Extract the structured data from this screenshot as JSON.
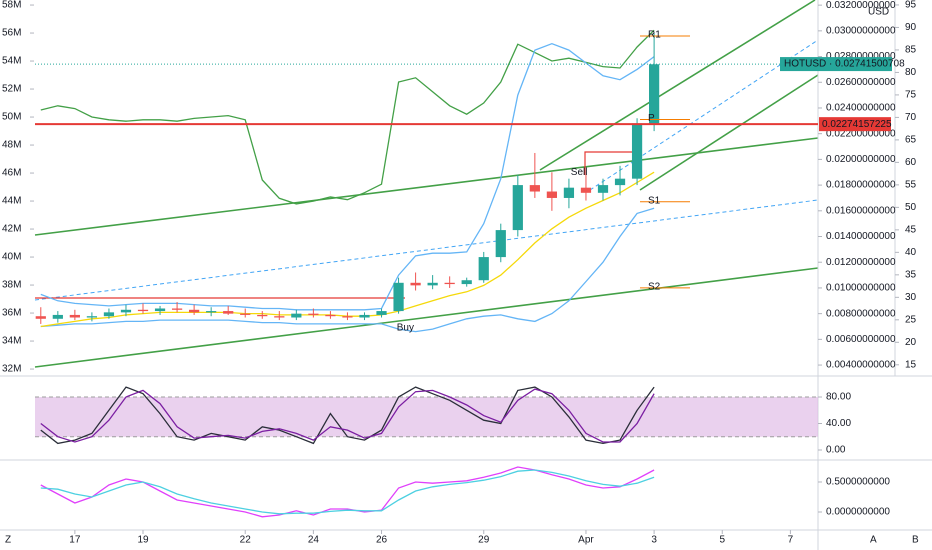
{
  "chart_data": [
    {
      "type": "candlestick",
      "x": [
        0,
        0.5,
        1,
        1.5,
        2,
        2.5,
        3,
        3.5,
        4,
        4.5,
        5,
        5.5,
        6,
        6.5,
        7,
        7.5,
        8,
        8.5,
        9,
        9.5,
        10,
        10.5,
        11,
        11.5,
        12,
        12.5,
        13,
        13.5,
        14,
        14.5,
        15,
        15.5,
        16,
        16.5,
        17,
        17.5,
        18
      ],
      "open": [
        0.0078,
        0.0076,
        0.0079,
        0.0077,
        0.0078,
        0.0081,
        0.0083,
        0.0082,
        0.0084,
        0.0083,
        0.0081,
        0.0082,
        0.008,
        0.0079,
        0.0078,
        0.0077,
        0.008,
        0.0079,
        0.0078,
        0.0077,
        0.0079,
        0.0082,
        0.0104,
        0.0102,
        0.0104,
        0.0103,
        0.0106,
        0.0124,
        0.0145,
        0.018,
        0.0175,
        0.017,
        0.0178,
        0.0174,
        0.018,
        0.0185,
        0.0228
      ],
      "high": [
        0.0085,
        0.0082,
        0.0083,
        0.0081,
        0.0084,
        0.0087,
        0.0088,
        0.0086,
        0.0089,
        0.0087,
        0.0085,
        0.0086,
        0.0084,
        0.0082,
        0.0082,
        0.0083,
        0.0084,
        0.0082,
        0.0081,
        0.0081,
        0.0084,
        0.0108,
        0.0112,
        0.011,
        0.0109,
        0.0108,
        0.0128,
        0.015,
        0.0188,
        0.0205,
        0.019,
        0.0185,
        0.0188,
        0.0185,
        0.0195,
        0.0232,
        0.0298
      ],
      "low": [
        0.0072,
        0.0073,
        0.0075,
        0.0074,
        0.0076,
        0.0078,
        0.008,
        0.0079,
        0.0081,
        0.0079,
        0.0078,
        0.0079,
        0.0077,
        0.0076,
        0.0075,
        0.0075,
        0.0077,
        0.0076,
        0.0075,
        0.0075,
        0.0077,
        0.008,
        0.0098,
        0.0099,
        0.01,
        0.0101,
        0.0104,
        0.012,
        0.014,
        0.017,
        0.016,
        0.0162,
        0.0168,
        0.0168,
        0.0172,
        0.018,
        0.0222
      ],
      "close": [
        0.0076,
        0.0079,
        0.0077,
        0.0078,
        0.0081,
        0.0083,
        0.0082,
        0.0084,
        0.0083,
        0.0081,
        0.0082,
        0.008,
        0.0079,
        0.0078,
        0.0077,
        0.008,
        0.0079,
        0.0078,
        0.0077,
        0.0079,
        0.0082,
        0.0104,
        0.0102,
        0.0104,
        0.0103,
        0.0106,
        0.0124,
        0.0145,
        0.018,
        0.0175,
        0.017,
        0.0178,
        0.0174,
        0.018,
        0.0185,
        0.0228,
        0.0274
      ],
      "up_color": "#26a69a",
      "down_color": "#ef5350",
      "xlim": [
        -0.17,
        22.81
      ],
      "xticks": [
        {
          "value": 1,
          "label": "17"
        },
        {
          "value": 3,
          "label": "19"
        },
        {
          "value": 6,
          "label": "22"
        },
        {
          "value": 8,
          "label": "24"
        },
        {
          "value": 10,
          "label": "26"
        },
        {
          "value": 13,
          "label": "29"
        },
        {
          "value": 16,
          "label": "Apr"
        },
        {
          "value": 18,
          "label": "3"
        },
        {
          "value": 20,
          "label": "5"
        },
        {
          "value": 22,
          "label": "7"
        }
      ],
      "ylim": [
        0.00346,
        0.0324
      ],
      "yticks": [
        {
          "value": 0.032,
          "label": "0.03200000000"
        },
        {
          "value": 0.03,
          "label": "0.03000000000"
        },
        {
          "value": 0.028,
          "label": "0.02800000000"
        },
        {
          "value": 0.026,
          "label": "0.02600000000"
        },
        {
          "value": 0.024,
          "label": "0.02400000000"
        },
        {
          "value": 0.022,
          "label": "0.02200000000"
        },
        {
          "value": 0.02,
          "label": "0.02000000000"
        },
        {
          "value": 0.018,
          "label": "0.01800000000"
        },
        {
          "value": 0.016,
          "label": "0.01600000000"
        },
        {
          "value": 0.014,
          "label": "0.01400000000"
        },
        {
          "value": 0.012,
          "label": "0.01200000000"
        },
        {
          "value": 0.01,
          "label": "0.01000000000"
        },
        {
          "value": 0.008,
          "label": "0.00800000000"
        },
        {
          "value": 0.006,
          "label": "0.00600000000"
        },
        {
          "value": 0.004,
          "label": "0.00400000000"
        }
      ],
      "y2lim": [
        13.4,
        96.1
      ],
      "y2ticks": [
        95,
        90,
        85,
        80,
        75,
        70,
        65,
        60,
        55,
        50,
        45,
        40,
        35,
        30,
        25,
        20,
        15
      ],
      "y3lim": [
        31790000,
        58360000
      ],
      "y3ticks": [
        {
          "value": 58000000,
          "label": "58M"
        },
        {
          "value": 56000000,
          "label": "56M"
        },
        {
          "value": 54000000,
          "label": "54M"
        },
        {
          "value": 52000000,
          "label": "52M"
        },
        {
          "value": 50000000,
          "label": "50M"
        },
        {
          "value": 48000000,
          "label": "48M"
        },
        {
          "value": 46000000,
          "label": "46M"
        },
        {
          "value": 44000000,
          "label": "44M"
        },
        {
          "value": 42000000,
          "label": "42M"
        },
        {
          "value": 40000000,
          "label": "40M"
        },
        {
          "value": 38000000,
          "label": "38M"
        },
        {
          "value": 36000000,
          "label": "36M"
        },
        {
          "value": 34000000,
          "label": "34M"
        },
        {
          "value": 32000000,
          "label": "32M"
        }
      ],
      "currency": "USD",
      "series": [
        {
          "color": "#43a047",
          "axis": "y3",
          "values": [
            50500000,
            50800000,
            50600000,
            50000000,
            49800000,
            49700000,
            49800000,
            49800000,
            49700000,
            49900000,
            50000000,
            50100000,
            49800000,
            45500000,
            44200000,
            43800000,
            44000000,
            44300000,
            44100000,
            44600000,
            45200000,
            52500000,
            52800000,
            51800000,
            50800000,
            50200000,
            51000000,
            52500000,
            55200000,
            54600000,
            54000000,
            54200000,
            53900000,
            53600000,
            53500000,
            55000000,
            56200000
          ]
        },
        {
          "color": "#64b5f6",
          "values": [
            0.0095,
            0.009,
            0.0088,
            0.0087,
            0.0086,
            0.0087,
            0.0088,
            0.0088,
            0.0088,
            0.0087,
            0.0086,
            0.0086,
            0.0085,
            0.0084,
            0.0084,
            0.0083,
            0.0083,
            0.0083,
            0.0083,
            0.0083,
            0.0084,
            0.011,
            0.0125,
            0.0127,
            0.0127,
            0.0128,
            0.015,
            0.0185,
            0.025,
            0.0285,
            0.029,
            0.0285,
            0.0275,
            0.0265,
            0.0262,
            0.027,
            0.028
          ]
        },
        {
          "color": "#64b5f6",
          "values": [
            0.007,
            0.0071,
            0.0072,
            0.0072,
            0.0073,
            0.0074,
            0.0074,
            0.0075,
            0.0075,
            0.0075,
            0.0075,
            0.0075,
            0.0074,
            0.0073,
            0.0073,
            0.0072,
            0.0072,
            0.0072,
            0.0072,
            0.0072,
            0.0072,
            0.0068,
            0.0066,
            0.0068,
            0.0072,
            0.0076,
            0.0078,
            0.0079,
            0.0076,
            0.0074,
            0.008,
            0.009,
            0.0105,
            0.012,
            0.014,
            0.0158,
            0.0162
          ]
        },
        {
          "color": "#f5d90a",
          "values": [
            0.007,
            0.0072,
            0.0074,
            0.0076,
            0.0077,
            0.0079,
            0.008,
            0.0081,
            0.0081,
            0.0081,
            0.0081,
            0.0081,
            0.008,
            0.008,
            0.0079,
            0.0079,
            0.0079,
            0.0079,
            0.0078,
            0.0078,
            0.0079,
            0.0082,
            0.0086,
            0.009,
            0.0094,
            0.0097,
            0.0102,
            0.011,
            0.0122,
            0.0135,
            0.0146,
            0.0155,
            0.0162,
            0.0168,
            0.0174,
            0.0182,
            0.019
          ]
        }
      ],
      "price_line": {
        "value": 0.02274157225,
        "label": "0.02274157225",
        "color": "#e53935"
      },
      "last_price": {
        "value": 0.02741500708,
        "label": "HOTUSD · 0.02741500708",
        "color": "#26a69a"
      },
      "pivots": [
        {
          "label": "R1",
          "value": 0.0296
        },
        {
          "label": "P",
          "value": 0.0231
        },
        {
          "label": "S1",
          "value": 0.0167
        },
        {
          "label": "S2",
          "value": 0.01
        }
      ],
      "pivot_color": "#f57c00",
      "signals": [
        {
          "label": "Sell",
          "x": 15.8,
          "y": 0.019
        },
        {
          "label": "Buy",
          "x": 10.7,
          "y": 0.0069
        }
      ]
    },
    {
      "type": "line",
      "ylim": [
        -12.1,
        105.7
      ],
      "yticks": [
        {
          "value": 80,
          "label": "80.00"
        },
        {
          "value": 40,
          "label": "40.00"
        },
        {
          "value": 0,
          "label": "0.00"
        }
      ],
      "band": [
        20,
        80
      ],
      "band_color": "#e1bee7",
      "series": [
        {
          "color": "#2a2e39",
          "values": [
            30,
            10,
            15,
            25,
            60,
            95,
            85,
            55,
            20,
            15,
            25,
            20,
            15,
            35,
            30,
            20,
            10,
            55,
            20,
            15,
            30,
            80,
            95,
            85,
            75,
            60,
            45,
            40,
            90,
            95,
            80,
            50,
            15,
            10,
            15,
            60,
            95
          ]
        },
        {
          "color": "#7b1fa2",
          "values": [
            40,
            20,
            12,
            20,
            45,
            80,
            90,
            70,
            35,
            18,
            20,
            22,
            18,
            28,
            32,
            25,
            15,
            35,
            30,
            18,
            25,
            65,
            88,
            90,
            80,
            68,
            52,
            42,
            75,
            92,
            85,
            60,
            25,
            12,
            12,
            40,
            85
          ]
        }
      ]
    },
    {
      "type": "line",
      "ylim": [
        -0.3,
        0.833
      ],
      "yticks": [
        {
          "value": 0.5,
          "label": "0.5000000000"
        },
        {
          "value": 0,
          "label": "0.0000000000"
        }
      ],
      "series": [
        {
          "color": "#e040fb",
          "values": [
            0.45,
            0.3,
            0.15,
            0.25,
            0.45,
            0.55,
            0.5,
            0.35,
            0.2,
            0.15,
            0.1,
            0.05,
            0.0,
            -0.08,
            -0.05,
            0.02,
            -0.05,
            0.05,
            0.05,
            0.0,
            0.03,
            0.4,
            0.5,
            0.48,
            0.5,
            0.52,
            0.58,
            0.65,
            0.75,
            0.7,
            0.62,
            0.55,
            0.45,
            0.4,
            0.42,
            0.55,
            0.7
          ]
        },
        {
          "color": "#4dd0e1",
          "values": [
            0.4,
            0.38,
            0.3,
            0.25,
            0.35,
            0.45,
            0.5,
            0.42,
            0.3,
            0.22,
            0.15,
            0.1,
            0.05,
            0.0,
            -0.03,
            -0.02,
            -0.02,
            0.01,
            0.03,
            0.02,
            0.02,
            0.2,
            0.35,
            0.42,
            0.46,
            0.49,
            0.53,
            0.59,
            0.68,
            0.7,
            0.66,
            0.6,
            0.52,
            0.46,
            0.43,
            0.48,
            0.58
          ]
        }
      ]
    }
  ],
  "ui": {
    "left_button": "Z",
    "right_buttons": [
      "A",
      "B"
    ]
  }
}
